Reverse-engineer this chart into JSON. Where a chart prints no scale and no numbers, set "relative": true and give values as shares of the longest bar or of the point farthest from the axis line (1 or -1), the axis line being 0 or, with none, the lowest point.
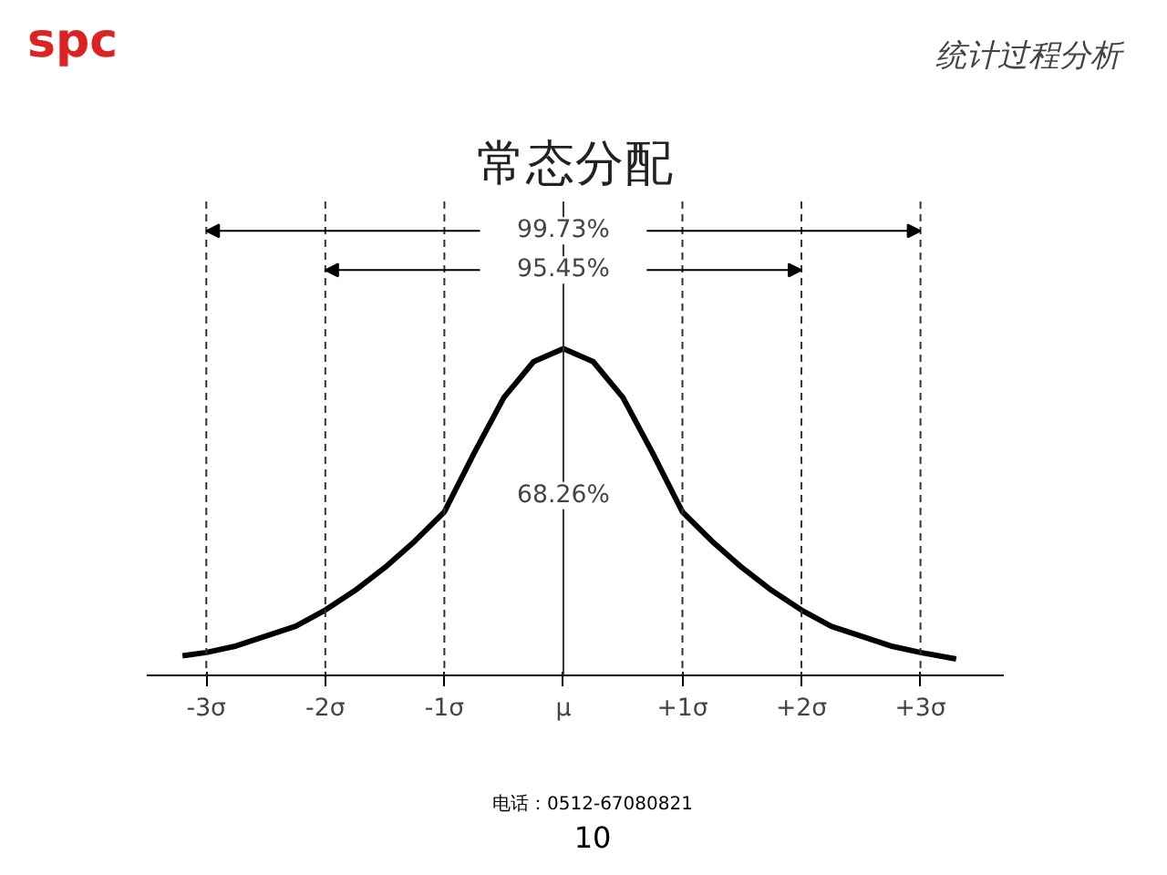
{
  "chart_data": {
    "type": "line",
    "title": "常态分配",
    "relative": true,
    "x": [
      -3.2,
      -3,
      -2.75,
      -2.5,
      -2.25,
      -2,
      -1.75,
      -1.5,
      -1.25,
      -1,
      -0.75,
      -0.5,
      -0.25,
      0,
      0.25,
      0.5,
      0.75,
      1,
      1.25,
      1.5,
      1.75,
      2,
      2.25,
      2.5,
      2.75,
      3,
      3.3
    ],
    "series": [
      {
        "color": "#000000",
        "values": [
          0.06,
          0.07,
          0.09,
          0.12,
          0.15,
          0.2,
          0.26,
          0.33,
          0.41,
          0.5,
          0.68,
          0.85,
          0.96,
          1,
          0.96,
          0.85,
          0.68,
          0.5,
          0.41,
          0.33,
          0.26,
          0.2,
          0.15,
          0.12,
          0.09,
          0.07,
          0.05
        ]
      }
    ],
    "xlim": [
      -3.5,
      3.7
    ],
    "xticks": [
      {
        "value": -3,
        "label": "-3σ"
      },
      {
        "value": -2,
        "label": "-2σ"
      },
      {
        "value": -1,
        "label": "-1σ"
      },
      {
        "value": 0,
        "label": "μ"
      },
      {
        "value": 1,
        "label": "+1σ"
      },
      {
        "value": 2,
        "label": "+2σ"
      },
      {
        "value": 3,
        "label": "+3σ"
      }
    ],
    "ref_lines": [
      {
        "axis": "x",
        "value": -3,
        "line_style": "dashed"
      },
      {
        "axis": "x",
        "value": -2,
        "line_style": "dashed"
      },
      {
        "axis": "x",
        "value": -1,
        "line_style": "dashed"
      },
      {
        "axis": "x",
        "value": 0,
        "line_style": "solid"
      },
      {
        "axis": "x",
        "value": 1,
        "line_style": "dashed"
      },
      {
        "axis": "x",
        "value": 2,
        "line_style": "dashed"
      },
      {
        "axis": "x",
        "value": 3,
        "line_style": "dashed"
      }
    ],
    "annotations": [
      "99.73%",
      "95.45%",
      "68.26%",
      "spc",
      "统计过程分析",
      "电话：0512-67080821",
      "10"
    ],
    "grid": false,
    "marker": "none",
    "line_style": "solid"
  }
}
